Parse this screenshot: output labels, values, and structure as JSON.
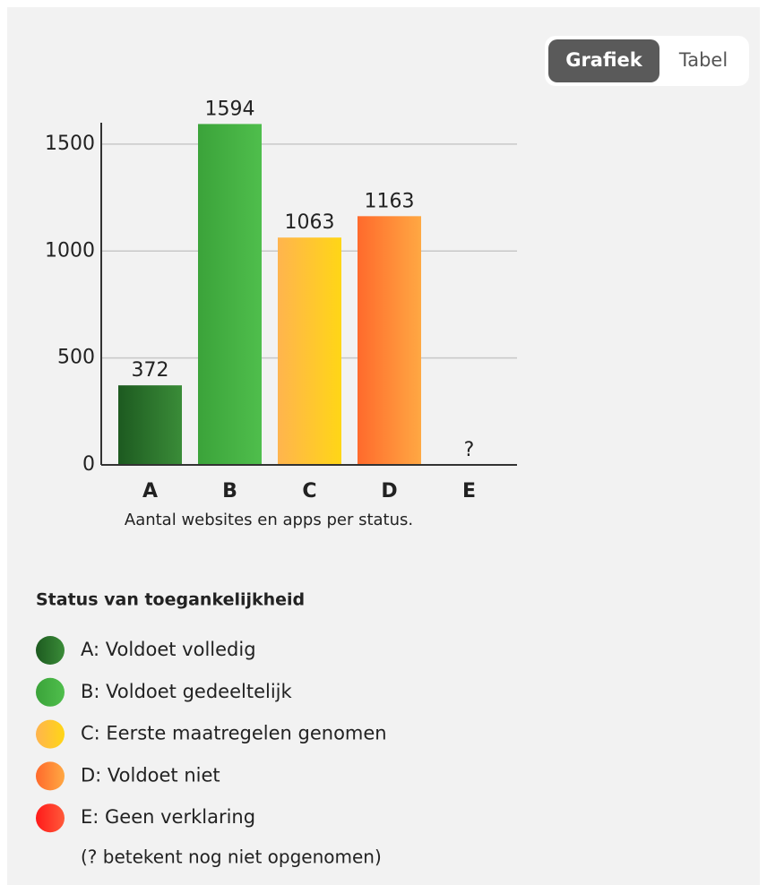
{
  "toggle": {
    "options": [
      "Grafiek",
      "Tabel"
    ],
    "active": 0
  },
  "chart_data": {
    "type": "bar",
    "categories": [
      "A",
      "B",
      "C",
      "D",
      "E"
    ],
    "values": [
      372,
      1594,
      1063,
      1163,
      null
    ],
    "value_labels": [
      "372",
      "1594",
      "1063",
      "1163",
      "?"
    ],
    "colors": [
      [
        "#1d5a20",
        "#3a8c38"
      ],
      [
        "#3ba33a",
        "#4fbe4c"
      ],
      [
        "#ffb44e",
        "#ffd616"
      ],
      [
        "#ff6a2c",
        "#ffa843"
      ],
      [
        "#ff1a1a",
        "#ff5a3a"
      ]
    ],
    "ylim": [
      0,
      1600
    ],
    "yticks": [
      0,
      500,
      1000,
      1500
    ],
    "grid": true,
    "caption": "Aantal websites en apps per status."
  },
  "legend": {
    "title": "Status van toegankelijkheid",
    "items": [
      "A: Voldoet volledig",
      "B: Voldoet gedeeltelijk",
      "C: Eerste maatregelen genomen",
      "D: Voldoet niet",
      "E: Geen verklaring"
    ],
    "note": "(? betekent nog niet opgenomen)"
  }
}
